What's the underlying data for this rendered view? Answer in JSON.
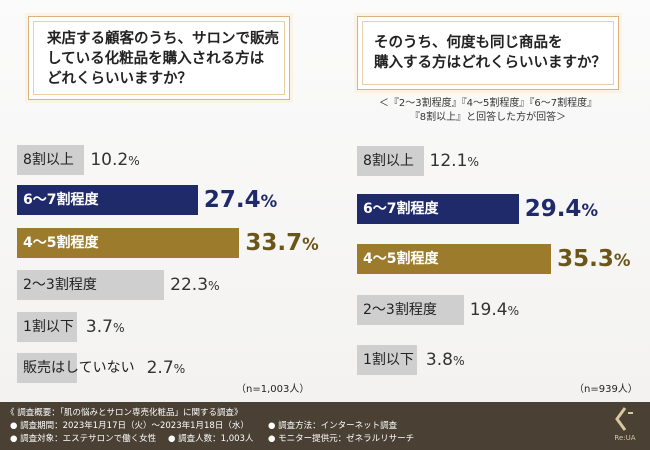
{
  "left": {
    "question": "来店する顧客のうち、サロンで販売\nしている化粧品を購入される方は\nどれくらいいますか？",
    "n_label": "（n=1,003人）"
  },
  "right": {
    "question": "そのうち、何度も同じ商品を\n購入する方はどれくらいいますか？",
    "note": "＜『2〜3割程度』『4〜5割程度』『6〜7割程度』\n『8割以上』と回答した方が回答＞",
    "n_label": "（n=939人）"
  },
  "chart_data": [
    {
      "type": "bar",
      "categories": [
        "8割以上",
        "6〜7割程度",
        "4〜5割程度",
        "2〜3割程度",
        "1割以下",
        "販売はしていない"
      ],
      "values": [
        10.2,
        27.4,
        33.7,
        22.3,
        3.7,
        2.7
      ],
      "value_labels": [
        "10.2",
        "27.4",
        "33.7",
        "22.3",
        "3.7",
        "2.7"
      ],
      "unit": "%",
      "orientation": "horizontal"
    },
    {
      "type": "bar",
      "categories": [
        "8割以上",
        "6〜7割程度",
        "4〜5割程度",
        "2〜3割程度",
        "1割以下"
      ],
      "values": [
        12.1,
        29.4,
        35.3,
        19.4,
        3.8
      ],
      "value_labels": [
        "12.1",
        "29.4",
        "35.3",
        "19.4",
        "3.8"
      ],
      "unit": "%",
      "orientation": "horizontal"
    }
  ],
  "colors": {
    "navy": "#1f2a6b",
    "gold": "#9c7c2c",
    "gray": "#cfcfcf",
    "footer_bg": "#4a4034"
  },
  "footer": {
    "title": "《 調査概要：「肌の悩みとサロン専売化粧品」に関する調査》",
    "period": "● 調査期間：2023年1月17日（火）〜2023年1月18日（水）",
    "target": "● 調査対象：エステサロンで働く女性",
    "count": "● 調査人数：1,003人",
    "method": "● 調査方法：インターネット調査",
    "provider": "● モニター提供元：ゼネラルリサーチ",
    "logo_text": "Re:UA"
  }
}
